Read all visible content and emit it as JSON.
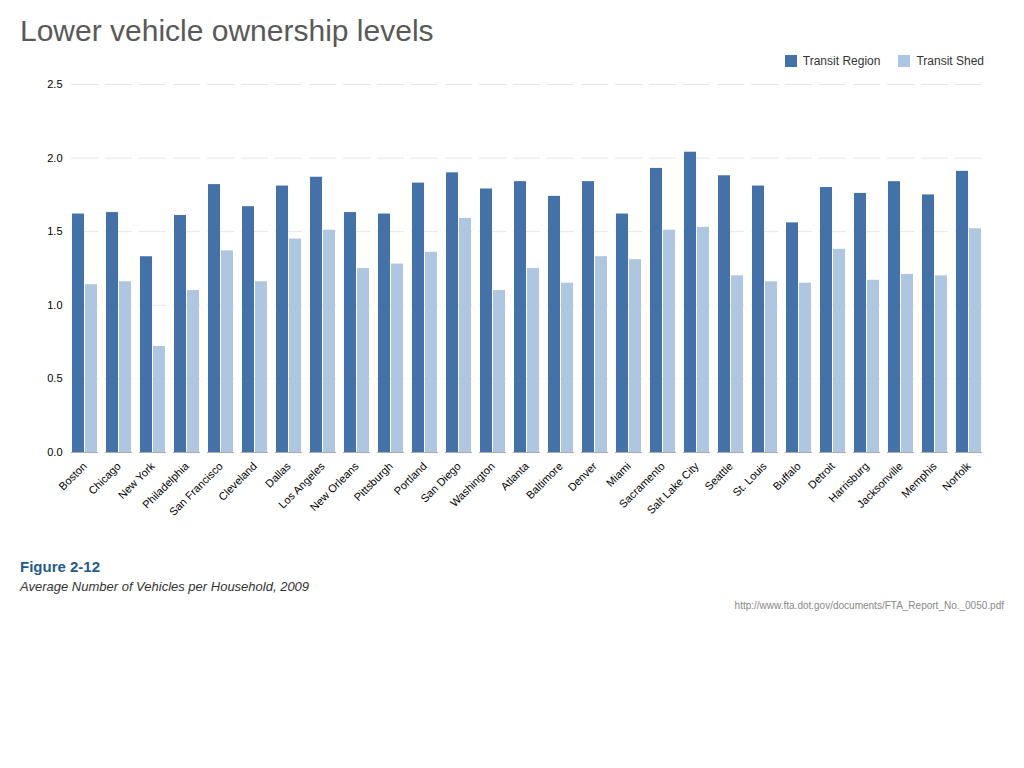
{
  "chart_data": {
    "type": "bar",
    "title": "Lower vehicle ownership levels",
    "annotations": [
      "Figure 2-12",
      "Average Number of Vehicles per Household, 2009",
      "http://www.fta.dot.gov/documents/FTA_Report_No._0050.pdf"
    ],
    "categories": [
      "Boston",
      "Chicago",
      "New York",
      "Philadelphia",
      "San Francisco",
      "Cleveland",
      "Dallas",
      "Los Angeles",
      "New Orleans",
      "Pittsburgh",
      "Portland",
      "San Diego",
      "Washington",
      "Atlanta",
      "Baltimore",
      "Denver",
      "Miami",
      "Sacramento",
      "Salt Lake City",
      "Seattle",
      "St. Louis",
      "Buffalo",
      "Detroit",
      "Harrisburg",
      "Jacksonville",
      "Memphis",
      "Norfolk"
    ],
    "series": [
      {
        "name": "Transit Region",
        "color": "#4472A8",
        "values": [
          1.62,
          1.63,
          1.33,
          1.61,
          1.82,
          1.67,
          1.81,
          1.87,
          1.63,
          1.62,
          1.83,
          1.9,
          1.79,
          1.84,
          1.74,
          1.84,
          1.62,
          1.93,
          2.04,
          1.88,
          1.81,
          1.56,
          1.8,
          1.76,
          1.84,
          1.75,
          1.91
        ]
      },
      {
        "name": "Transit Shed",
        "color": "#AFC6E0",
        "values": [
          1.14,
          1.16,
          0.72,
          1.1,
          1.37,
          1.16,
          1.45,
          1.51,
          1.25,
          1.28,
          1.36,
          1.59,
          1.1,
          1.25,
          1.15,
          1.33,
          1.31,
          1.51,
          1.53,
          1.2,
          1.16,
          1.15,
          1.38,
          1.17,
          1.21,
          1.2,
          1.52
        ]
      }
    ],
    "ylim": [
      0,
      2.5
    ],
    "yticks": [
      {
        "value": 0,
        "label": "0.0"
      },
      0.5,
      {
        "value": 1.0,
        "label": "1.0"
      },
      1.5,
      {
        "value": 2.0,
        "label": "2.0"
      },
      2.5
    ],
    "grid": true,
    "legend": "upper right"
  }
}
